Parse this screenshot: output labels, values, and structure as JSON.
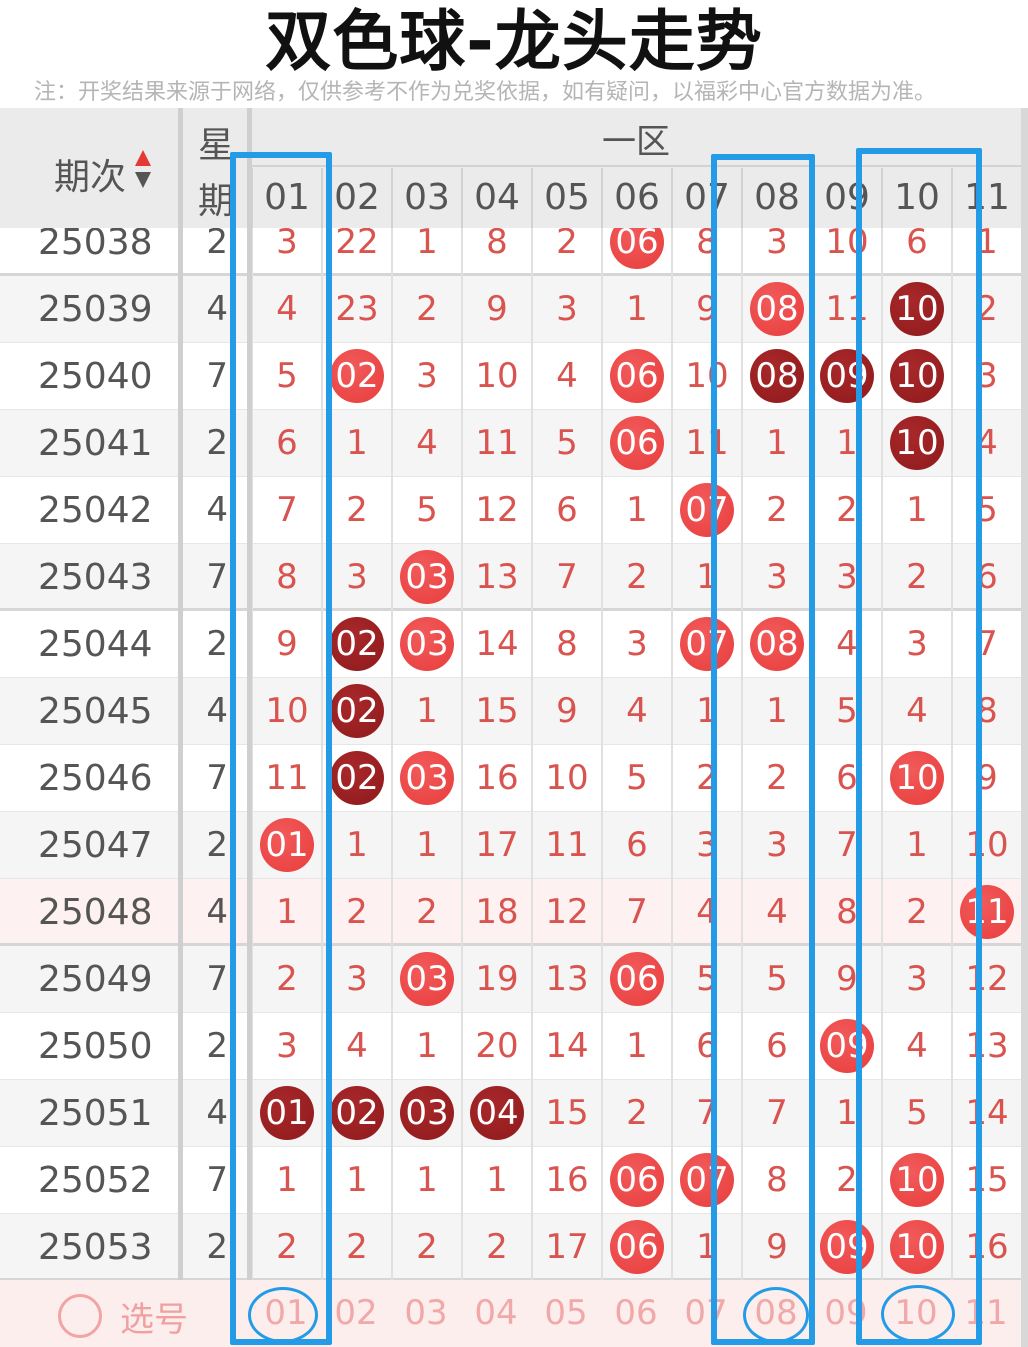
{
  "title": "双色球-龙头走势",
  "note": "注：开奖结果来源于网络，仅供参考不作为兑奖依据，如有疑问，以福彩中心官方数据为准。",
  "header": {
    "period_label": "期次",
    "week_label_top": "星",
    "week_label_bottom": "期",
    "zone_label": "一区",
    "numbers": [
      "01",
      "02",
      "03",
      "04",
      "05",
      "06",
      "07",
      "08",
      "09",
      "10",
      "11"
    ]
  },
  "colors": {
    "hit_light": "#e83d3d",
    "hit_dark": "#921c1e",
    "miss_text": "#d9534f",
    "highlight_box": "#239be6"
  },
  "rows": [
    {
      "period": "25038",
      "week": "2",
      "cells": [
        "3",
        "22",
        "1",
        "8",
        "2",
        "06",
        "8",
        "3",
        "10",
        "6",
        "1"
      ],
      "dark": []
    },
    {
      "period": "25039",
      "week": "4",
      "cells": [
        "4",
        "23",
        "2",
        "9",
        "3",
        "1",
        "9",
        "08",
        "11",
        "10",
        "2"
      ],
      "dark": [
        "10"
      ]
    },
    {
      "period": "25040",
      "week": "7",
      "cells": [
        "5",
        "02",
        "3",
        "10",
        "4",
        "06",
        "10",
        "08",
        "09",
        "10",
        "3"
      ],
      "dark": [
        "08",
        "09",
        "10"
      ]
    },
    {
      "period": "25041",
      "week": "2",
      "cells": [
        "6",
        "1",
        "4",
        "11",
        "5",
        "06",
        "11",
        "1",
        "1",
        "10",
        "4"
      ],
      "dark": [
        "10"
      ]
    },
    {
      "period": "25042",
      "week": "4",
      "cells": [
        "7",
        "2",
        "5",
        "12",
        "6",
        "1",
        "07",
        "2",
        "2",
        "1",
        "5"
      ],
      "dark": []
    },
    {
      "period": "25043",
      "week": "7",
      "cells": [
        "8",
        "3",
        "03",
        "13",
        "7",
        "2",
        "1",
        "3",
        "3",
        "2",
        "6"
      ],
      "dark": []
    },
    {
      "period": "25044",
      "week": "2",
      "cells": [
        "9",
        "02",
        "03",
        "14",
        "8",
        "3",
        "07",
        "08",
        "4",
        "3",
        "7"
      ],
      "dark": [
        "02"
      ]
    },
    {
      "period": "25045",
      "week": "4",
      "cells": [
        "10",
        "02",
        "1",
        "15",
        "9",
        "4",
        "1",
        "1",
        "5",
        "4",
        "8"
      ],
      "dark": [
        "02"
      ]
    },
    {
      "period": "25046",
      "week": "7",
      "cells": [
        "11",
        "02",
        "03",
        "16",
        "10",
        "5",
        "2",
        "2",
        "6",
        "10",
        "9"
      ],
      "dark": [
        "02"
      ]
    },
    {
      "period": "25047",
      "week": "2",
      "cells": [
        "01",
        "1",
        "1",
        "17",
        "11",
        "6",
        "3",
        "3",
        "7",
        "1",
        "10"
      ],
      "dark": []
    },
    {
      "period": "25048",
      "week": "4",
      "cells": [
        "1",
        "2",
        "2",
        "18",
        "12",
        "7",
        "4",
        "4",
        "8",
        "2",
        "11"
      ],
      "dark": []
    },
    {
      "period": "25049",
      "week": "7",
      "cells": [
        "2",
        "3",
        "03",
        "19",
        "13",
        "06",
        "5",
        "5",
        "9",
        "3",
        "12"
      ],
      "dark": []
    },
    {
      "period": "25050",
      "week": "2",
      "cells": [
        "3",
        "4",
        "1",
        "20",
        "14",
        "1",
        "6",
        "6",
        "09",
        "4",
        "13"
      ],
      "dark": []
    },
    {
      "period": "25051",
      "week": "4",
      "cells": [
        "01",
        "02",
        "03",
        "04",
        "15",
        "2",
        "7",
        "7",
        "1",
        "5",
        "14"
      ],
      "dark": [
        "01",
        "02",
        "03",
        "04"
      ]
    },
    {
      "period": "25052",
      "week": "7",
      "cells": [
        "1",
        "1",
        "1",
        "1",
        "16",
        "06",
        "07",
        "8",
        "2",
        "10",
        "15"
      ],
      "dark": []
    },
    {
      "period": "25053",
      "week": "2",
      "cells": [
        "2",
        "2",
        "2",
        "2",
        "17",
        "06",
        "1",
        "9",
        "09",
        "10",
        "16"
      ],
      "dark": []
    }
  ],
  "footer": {
    "pick_label": "选号",
    "numbers": [
      "01",
      "02",
      "03",
      "04",
      "05",
      "06",
      "07",
      "08",
      "09",
      "10",
      "11"
    ]
  },
  "highlighted_columns": [
    "01",
    "08",
    "10"
  ]
}
